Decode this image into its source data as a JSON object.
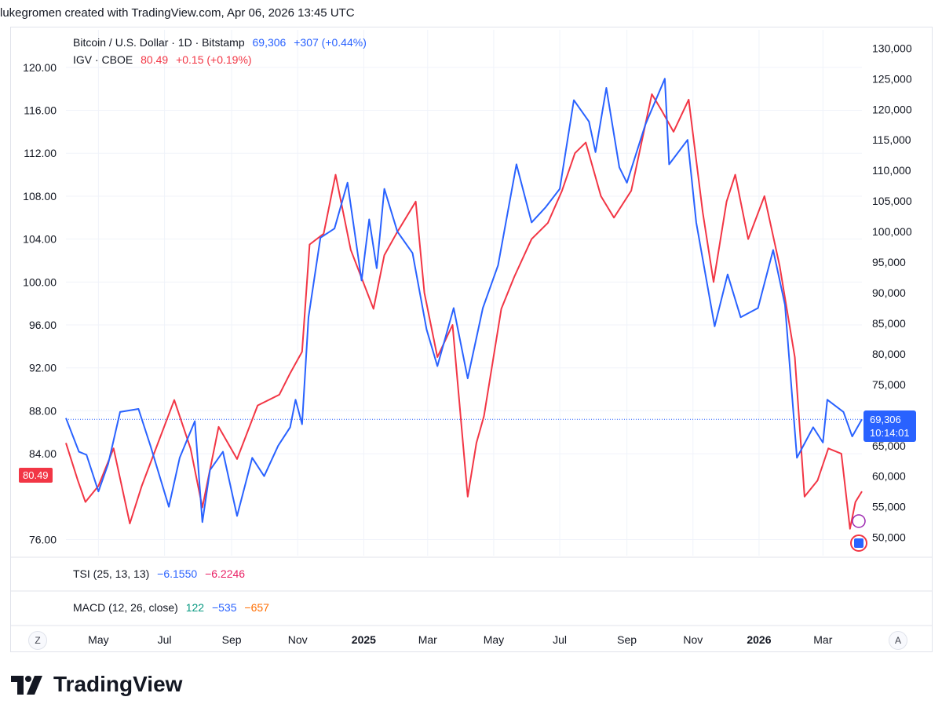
{
  "header": "lukegromen created with TradingView.com, Apr 06, 2026 13:45 UTC",
  "legend": {
    "btc": {
      "name": "Bitcoin / U.S. Dollar · 1D · Bitstamp",
      "price": "69,306",
      "change": "+307 (+0.44%)"
    },
    "igv": {
      "name": "IGV · CBOE",
      "price": "80.49",
      "change": "+0.15 (+0.19%)"
    }
  },
  "tags": {
    "igv_price": "80.49",
    "btc_price": "69,306",
    "btc_countdown": "10:14:01"
  },
  "tsi": {
    "label": "TSI (25, 13, 13)",
    "v1": "−6.1550",
    "v2": "−6.2246"
  },
  "macd": {
    "label": "MACD (12, 26, close)",
    "v1": "122",
    "v2": "−535",
    "v3": "−657"
  },
  "buttons": {
    "zoom": "Z",
    "auto": "A"
  },
  "logo_text": "TradingView",
  "colors": {
    "btc": "#2962ff",
    "igv": "#f23645",
    "grid": "#f0f3fa",
    "axis_text": "#131722"
  },
  "chart_data": {
    "type": "line",
    "title": "Bitcoin / U.S. Dollar vs IGV",
    "x_range": [
      "2024-04-01",
      "2026-04-06"
    ],
    "x_tick_labels": [
      {
        "label": "May",
        "date": "2024-05-01",
        "bold": false
      },
      {
        "label": "Jul",
        "date": "2024-07-01",
        "bold": false
      },
      {
        "label": "Sep",
        "date": "2024-09-01",
        "bold": false
      },
      {
        "label": "Nov",
        "date": "2024-11-01",
        "bold": false
      },
      {
        "label": "2025",
        "date": "2025-01-01",
        "bold": true
      },
      {
        "label": "Mar",
        "date": "2025-03-01",
        "bold": false
      },
      {
        "label": "May",
        "date": "2025-05-01",
        "bold": false
      },
      {
        "label": "Jul",
        "date": "2025-07-01",
        "bold": false
      },
      {
        "label": "Sep",
        "date": "2025-09-01",
        "bold": false
      },
      {
        "label": "Nov",
        "date": "2025-11-01",
        "bold": false
      },
      {
        "label": "2026",
        "date": "2026-01-01",
        "bold": true
      },
      {
        "label": "Mar",
        "date": "2026-03-01",
        "bold": false
      }
    ],
    "left_axis": {
      "series": "IGV",
      "ylim": [
        74.5,
        123.5
      ],
      "ticks": [
        76,
        84,
        88,
        92,
        96,
        100,
        104,
        108,
        112,
        116,
        120
      ],
      "tick_labels": [
        "76.00",
        "84.00",
        "88.00",
        "92.00",
        "96.00",
        "100.00",
        "104.00",
        "108.00",
        "112.00",
        "116.00",
        "120.00"
      ]
    },
    "right_axis": {
      "series": "BTC",
      "ylim": [
        47000,
        133000
      ],
      "ticks": [
        50000,
        55000,
        60000,
        65000,
        70000,
        75000,
        80000,
        85000,
        90000,
        95000,
        100000,
        105000,
        110000,
        115000,
        120000,
        125000,
        130000
      ],
      "tick_labels": [
        "50,000",
        "55,000",
        "60,000",
        "65,000",
        "70,000",
        "75,000",
        "80,000",
        "85,000",
        "90,000",
        "95,000",
        "100,000",
        "105,000",
        "110,000",
        "115,000",
        "120,000",
        "125,000",
        "130,000"
      ]
    },
    "series": [
      {
        "name": "Bitcoin / U.S. Dollar",
        "axis": "right",
        "color": "#2962ff",
        "points": [
          [
            "2024-04-01",
            69500
          ],
          [
            "2024-04-13",
            64000
          ],
          [
            "2024-04-20",
            63500
          ],
          [
            "2024-05-01",
            57500
          ],
          [
            "2024-05-10",
            62000
          ],
          [
            "2024-05-21",
            70500
          ],
          [
            "2024-06-07",
            71000
          ],
          [
            "2024-06-18",
            65000
          ],
          [
            "2024-07-05",
            55000
          ],
          [
            "2024-07-15",
            63000
          ],
          [
            "2024-07-29",
            69000
          ],
          [
            "2024-08-05",
            52500
          ],
          [
            "2024-08-12",
            61000
          ],
          [
            "2024-08-24",
            64000
          ],
          [
            "2024-09-06",
            53500
          ],
          [
            "2024-09-20",
            63000
          ],
          [
            "2024-10-01",
            60000
          ],
          [
            "2024-10-14",
            65000
          ],
          [
            "2024-10-25",
            68000
          ],
          [
            "2024-10-30",
            72500
          ],
          [
            "2024-11-05",
            68500
          ],
          [
            "2024-11-11",
            86000
          ],
          [
            "2024-11-22",
            99000
          ],
          [
            "2024-12-05",
            100500
          ],
          [
            "2024-12-17",
            108000
          ],
          [
            "2024-12-30",
            92000
          ],
          [
            "2025-01-06",
            102000
          ],
          [
            "2025-01-13",
            94000
          ],
          [
            "2025-01-20",
            107000
          ],
          [
            "2025-02-01",
            100000
          ],
          [
            "2025-02-15",
            96500
          ],
          [
            "2025-02-28",
            84000
          ],
          [
            "2025-03-10",
            78000
          ],
          [
            "2025-03-25",
            87500
          ],
          [
            "2025-04-07",
            76000
          ],
          [
            "2025-04-21",
            87500
          ],
          [
            "2025-05-05",
            94500
          ],
          [
            "2025-05-22",
            111000
          ],
          [
            "2025-06-05",
            101500
          ],
          [
            "2025-06-18",
            104000
          ],
          [
            "2025-07-01",
            107000
          ],
          [
            "2025-07-14",
            121500
          ],
          [
            "2025-07-28",
            118000
          ],
          [
            "2025-08-03",
            113000
          ],
          [
            "2025-08-13",
            123500
          ],
          [
            "2025-08-25",
            110500
          ],
          [
            "2025-09-01",
            108000
          ],
          [
            "2025-09-18",
            117500
          ],
          [
            "2025-10-06",
            125000
          ],
          [
            "2025-10-10",
            111000
          ],
          [
            "2025-10-27",
            115000
          ],
          [
            "2025-11-04",
            101500
          ],
          [
            "2025-11-21",
            84500
          ],
          [
            "2025-12-03",
            93000
          ],
          [
            "2025-12-15",
            86000
          ],
          [
            "2025-12-31",
            87500
          ],
          [
            "2026-01-14",
            97000
          ],
          [
            "2026-01-25",
            88000
          ],
          [
            "2026-02-05",
            63000
          ],
          [
            "2026-02-20",
            68000
          ],
          [
            "2026-03-01",
            65500
          ],
          [
            "2026-03-05",
            72500
          ],
          [
            "2026-03-20",
            70500
          ],
          [
            "2026-03-28",
            66500
          ],
          [
            "2026-04-06",
            69306
          ]
        ]
      },
      {
        "name": "IGV",
        "axis": "left",
        "color": "#f23645",
        "points": [
          [
            "2024-04-01",
            85.0
          ],
          [
            "2024-04-12",
            81.5
          ],
          [
            "2024-04-19",
            79.5
          ],
          [
            "2024-05-01",
            81.0
          ],
          [
            "2024-05-15",
            84.5
          ],
          [
            "2024-05-30",
            77.5
          ],
          [
            "2024-06-10",
            81.0
          ],
          [
            "2024-06-25",
            85.0
          ],
          [
            "2024-07-10",
            89.0
          ],
          [
            "2024-07-25",
            84.5
          ],
          [
            "2024-08-05",
            79.0
          ],
          [
            "2024-08-20",
            86.5
          ],
          [
            "2024-09-06",
            83.5
          ],
          [
            "2024-09-25",
            88.5
          ],
          [
            "2024-10-15",
            89.5
          ],
          [
            "2024-10-25",
            91.5
          ],
          [
            "2024-11-05",
            93.5
          ],
          [
            "2024-11-12",
            103.5
          ],
          [
            "2024-11-25",
            104.5
          ],
          [
            "2024-12-06",
            110.0
          ],
          [
            "2024-12-20",
            103.0
          ],
          [
            "2025-01-10",
            97.5
          ],
          [
            "2025-01-20",
            102.5
          ],
          [
            "2025-01-31",
            104.5
          ],
          [
            "2025-02-18",
            107.5
          ],
          [
            "2025-02-26",
            99.0
          ],
          [
            "2025-03-10",
            93.0
          ],
          [
            "2025-03-24",
            96.0
          ],
          [
            "2025-04-07",
            80.0
          ],
          [
            "2025-04-15",
            85.0
          ],
          [
            "2025-04-22",
            87.5
          ],
          [
            "2025-05-08",
            97.5
          ],
          [
            "2025-05-20",
            100.5
          ],
          [
            "2025-06-05",
            104.0
          ],
          [
            "2025-06-20",
            105.5
          ],
          [
            "2025-07-03",
            108.5
          ],
          [
            "2025-07-15",
            112.0
          ],
          [
            "2025-07-25",
            113.0
          ],
          [
            "2025-08-08",
            108.0
          ],
          [
            "2025-08-20",
            106.0
          ],
          [
            "2025-09-05",
            108.5
          ],
          [
            "2025-09-24",
            117.5
          ],
          [
            "2025-10-03",
            116.0
          ],
          [
            "2025-10-14",
            114.0
          ],
          [
            "2025-10-28",
            117.0
          ],
          [
            "2025-11-10",
            106.5
          ],
          [
            "2025-11-20",
            100.0
          ],
          [
            "2025-12-02",
            107.5
          ],
          [
            "2025-12-10",
            110.0
          ],
          [
            "2025-12-22",
            104.0
          ],
          [
            "2026-01-06",
            108.0
          ],
          [
            "2026-01-20",
            101.5
          ],
          [
            "2026-02-03",
            93.0
          ],
          [
            "2026-02-12",
            80.0
          ],
          [
            "2026-02-24",
            81.5
          ],
          [
            "2026-03-06",
            84.5
          ],
          [
            "2026-03-18",
            84.0
          ],
          [
            "2026-03-26",
            77.0
          ],
          [
            "2026-03-31",
            79.5
          ],
          [
            "2026-04-06",
            80.49
          ]
        ]
      }
    ]
  }
}
